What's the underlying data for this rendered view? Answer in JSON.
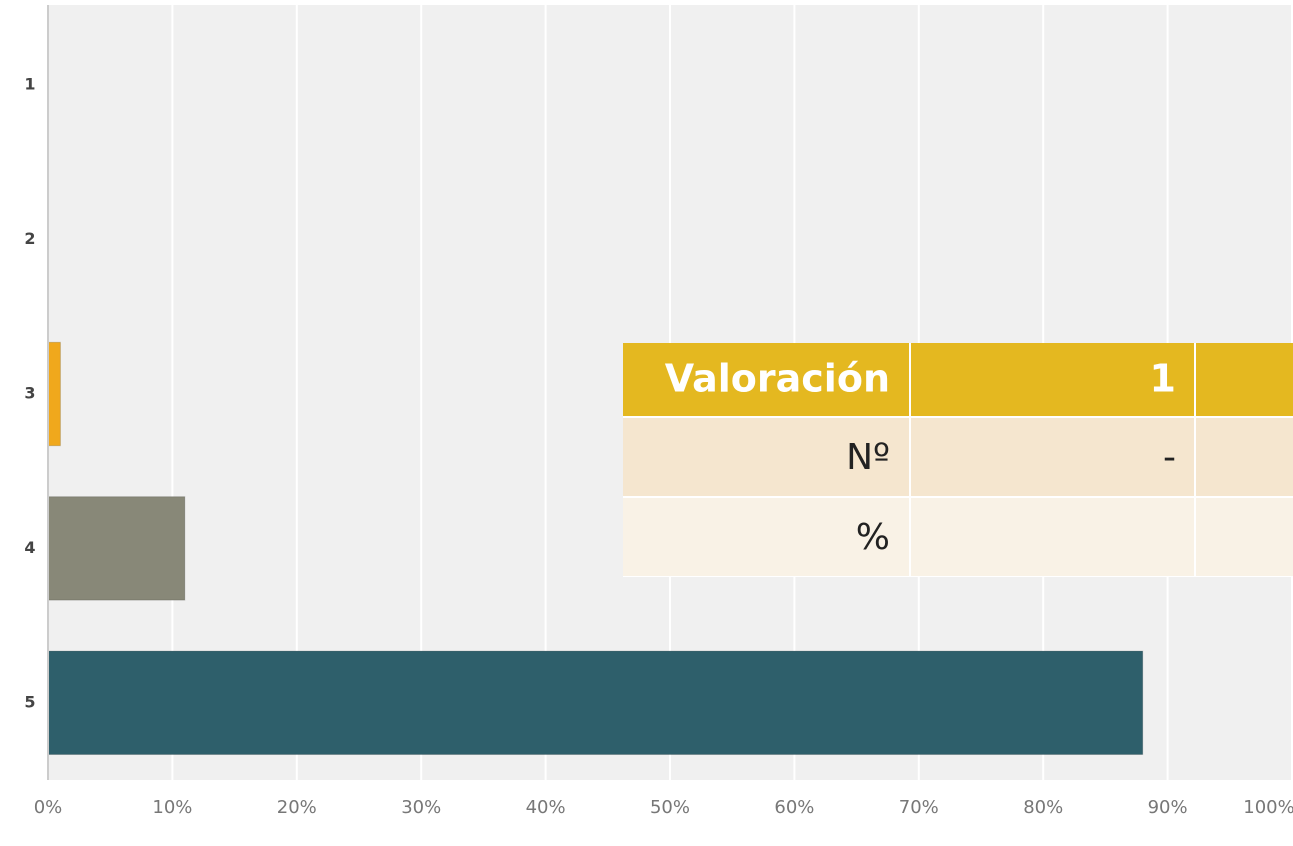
{
  "chart_data": {
    "type": "bar",
    "orientation": "horizontal",
    "categories": [
      "1",
      "2",
      "3",
      "4",
      "5"
    ],
    "values": [
      0,
      0,
      1,
      11,
      88
    ],
    "colors": [
      "#f0a81c",
      "#f0a81c",
      "#f0a81c",
      "#888878",
      "#2e5f6b"
    ],
    "xlim": [
      0,
      100
    ],
    "xticks": [
      {
        "value": 0,
        "label": "0%"
      },
      {
        "value": 10,
        "label": "10%"
      },
      {
        "value": 20,
        "label": "20%"
      },
      {
        "value": 30,
        "label": "30%"
      },
      {
        "value": 40,
        "label": "40%"
      },
      {
        "value": 50,
        "label": "50%"
      },
      {
        "value": 60,
        "label": "60%"
      },
      {
        "value": 70,
        "label": "70%"
      },
      {
        "value": 80,
        "label": "80%"
      },
      {
        "value": 90,
        "label": "90%"
      },
      {
        "value": 100,
        "label": "100%"
      }
    ],
    "grid": true
  },
  "table": {
    "header": [
      "Valoración",
      "1"
    ],
    "rows": [
      [
        "Nº",
        "-"
      ],
      [
        "%"
      ]
    ]
  }
}
